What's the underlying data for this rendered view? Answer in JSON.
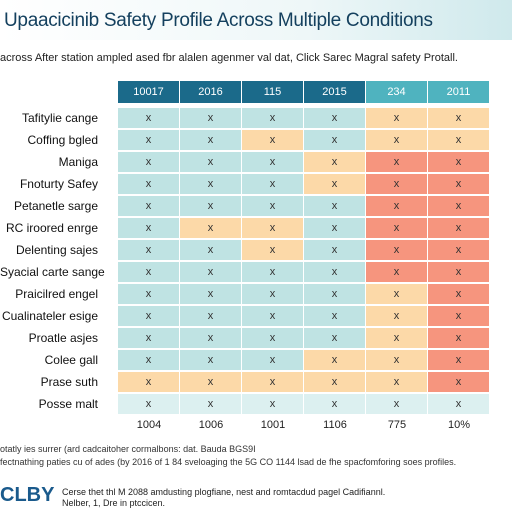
{
  "header": {
    "title": "Upaacicinib Safety Profile Across Multiple Conditions",
    "subtitle": "across After station ampled ased fbr alalen agenmer val dat, Click Sarec Magral safety Protall."
  },
  "table": {
    "columns": [
      {
        "label": "10017",
        "color": "#1b6a8a"
      },
      {
        "label": "2016",
        "color": "#1b6a8a"
      },
      {
        "label": "115",
        "color": "#1b6a8a"
      },
      {
        "label": "2015",
        "color": "#1b6a8a"
      },
      {
        "label": "234",
        "color": "#4fb3bf"
      },
      {
        "label": "2011",
        "color": "#4fb3bf"
      }
    ],
    "rows": [
      {
        "label": "Tafitylie cange",
        "cells": [
          "x",
          "x",
          "x",
          "x",
          "x",
          "x"
        ],
        "colors": [
          "#bfe3e3",
          "#bfe3e3",
          "#bfe3e3",
          "#bfe3e3",
          "#fcd9a8",
          "#fcd9a8"
        ]
      },
      {
        "label": "Coffing bgled",
        "cells": [
          "x",
          "x",
          "x",
          "x",
          "x",
          "x"
        ],
        "colors": [
          "#bfe3e3",
          "#bfe3e3",
          "#fcd9a8",
          "#bfe3e3",
          "#fcd9a8",
          "#fcd9a8"
        ]
      },
      {
        "label": "Maniga",
        "cells": [
          "x",
          "x",
          "x",
          "x",
          "x",
          "x"
        ],
        "colors": [
          "#bfe3e3",
          "#bfe3e3",
          "#bfe3e3",
          "#fcd9a8",
          "#f6957e",
          "#f6957e"
        ]
      },
      {
        "label": "Fnoturty Safey",
        "cells": [
          "x",
          "x",
          "x",
          "x",
          "x",
          "x"
        ],
        "colors": [
          "#bfe3e3",
          "#bfe3e3",
          "#bfe3e3",
          "#fcd9a8",
          "#f6957e",
          "#f6957e"
        ]
      },
      {
        "label": "Petanetle sarge",
        "cells": [
          "x",
          "x",
          "x",
          "x",
          "x",
          "x"
        ],
        "colors": [
          "#bfe3e3",
          "#bfe3e3",
          "#bfe3e3",
          "#bfe3e3",
          "#f6957e",
          "#f6957e"
        ]
      },
      {
        "label": "RC iroored enrge",
        "cells": [
          "x",
          "x",
          "x",
          "x",
          "x",
          "x"
        ],
        "colors": [
          "#bfe3e3",
          "#fcd9a8",
          "#fcd9a8",
          "#bfe3e3",
          "#f6957e",
          "#f6957e"
        ]
      },
      {
        "label": "Delenting sajes",
        "cells": [
          "x",
          "x",
          "x",
          "x",
          "x",
          "x"
        ],
        "colors": [
          "#bfe3e3",
          "#bfe3e3",
          "#fcd9a8",
          "#bfe3e3",
          "#f6957e",
          "#f6957e"
        ]
      },
      {
        "label": "Syacial carte sange",
        "cells": [
          "x",
          "x",
          "x",
          "x",
          "x",
          "x"
        ],
        "colors": [
          "#bfe3e3",
          "#bfe3e3",
          "#bfe3e3",
          "#bfe3e3",
          "#f6957e",
          "#f6957e"
        ]
      },
      {
        "label": "Praicilred engel",
        "cells": [
          "x",
          "x",
          "x",
          "x",
          "x",
          "x"
        ],
        "colors": [
          "#bfe3e3",
          "#bfe3e3",
          "#bfe3e3",
          "#bfe3e3",
          "#fcd9a8",
          "#f6957e"
        ]
      },
      {
        "label": "Cualinateler esige",
        "cells": [
          "x",
          "x",
          "x",
          "x",
          "x",
          "x"
        ],
        "colors": [
          "#bfe3e3",
          "#bfe3e3",
          "#bfe3e3",
          "#bfe3e3",
          "#fcd9a8",
          "#f6957e"
        ]
      },
      {
        "label": "Proatle asjes",
        "cells": [
          "x",
          "x",
          "x",
          "x",
          "x",
          "x"
        ],
        "colors": [
          "#bfe3e3",
          "#bfe3e3",
          "#bfe3e3",
          "#bfe3e3",
          "#fcd9a8",
          "#f6957e"
        ]
      },
      {
        "label": "Colee gall",
        "cells": [
          "x",
          "x",
          "x",
          "x",
          "x",
          "x"
        ],
        "colors": [
          "#bfe3e3",
          "#bfe3e3",
          "#bfe3e3",
          "#fcd9a8",
          "#fcd9a8",
          "#f6957e"
        ]
      },
      {
        "label": "Prase suth",
        "cells": [
          "x",
          "x",
          "x",
          "x",
          "x",
          "x"
        ],
        "colors": [
          "#fcd9a8",
          "#fcd9a8",
          "#fcd9a8",
          "#fcd9a8",
          "#fcd9a8",
          "#f6957e"
        ]
      },
      {
        "label": "Posse malt",
        "cells": [
          "x",
          "x",
          "x",
          "x",
          "x",
          "x"
        ],
        "colors": [
          "#dcf0f0",
          "#dcf0f0",
          "#dcf0f0",
          "#dcf0f0",
          "#dcf0f0",
          "#dcf0f0"
        ]
      }
    ],
    "totals": [
      "1004",
      "1006",
      "1001",
      "1106",
      "775",
      "10%"
    ]
  },
  "notes": [
    "otatly ies surrer (ard cadcaitoher cormalbons: dat. Bauda BGS9I",
    "fectnathing paties cu of ades (by 2016 of 1 84 sveloaging the 5G CO 1144 lsad de fhe spacfomforing soes profiles."
  ],
  "footer": {
    "logo": "CLBY",
    "lines": [
      "Cerse thet thl M 2088 amdusting plogfiane, nest and romtacdud pagel Cadifiannl.",
      "Nelber, 1, Dre in ptccicen."
    ]
  }
}
